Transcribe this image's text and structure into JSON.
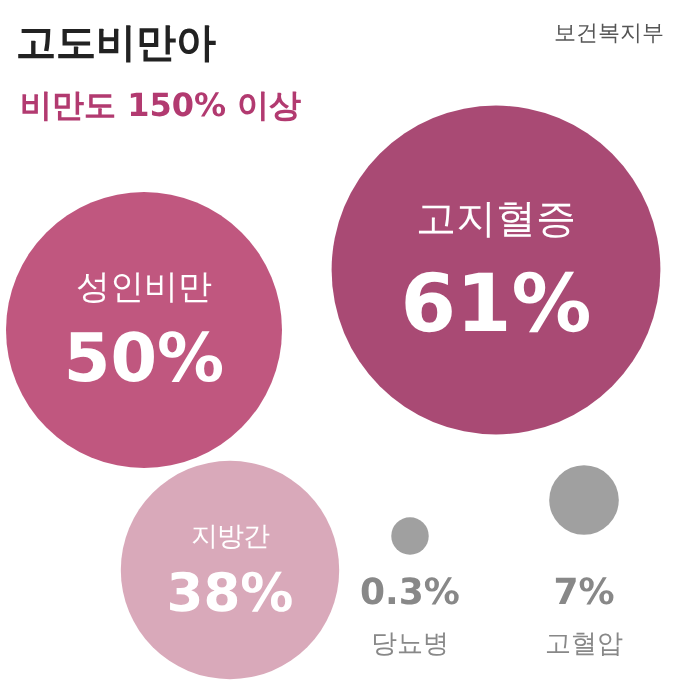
{
  "chart_data": {
    "type": "other",
    "title": "고도비만아",
    "subtitle": "비만도 150% 이상",
    "annotations": [
      "보건복지부"
    ],
    "categories": [
      "성인비만",
      "고지혈증",
      "지방간",
      "당뇨병",
      "고혈압"
    ],
    "values": [
      50,
      61,
      38,
      0.3,
      7
    ],
    "value_labels": [
      "50%",
      "61%",
      "38%",
      "0.3%",
      "7%"
    ],
    "colors": [
      "#c0577f",
      "#a94a74",
      "#d9a9ba",
      "#a0a0a0",
      "#a0a0a0"
    ]
  }
}
